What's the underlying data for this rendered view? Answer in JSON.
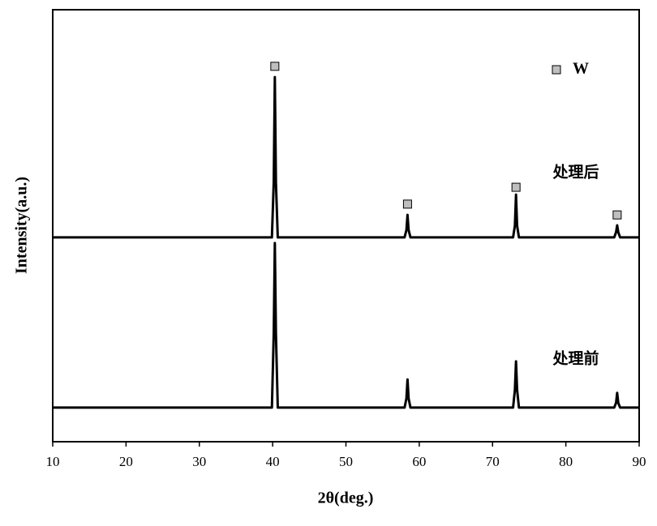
{
  "chart_data": {
    "type": "line",
    "xlabel": "2θ(deg.)",
    "ylabel": "Intensity(a.u.)",
    "xlim": [
      10,
      90
    ],
    "xticks": [
      10,
      20,
      30,
      40,
      50,
      60,
      70,
      80,
      90
    ],
    "ylim": [
      0,
      100
    ],
    "x": [
      10,
      39.9,
      40.15,
      40.3,
      40.45,
      40.7,
      58.0,
      58.25,
      58.4,
      58.55,
      58.8,
      72.8,
      73.05,
      73.2,
      73.35,
      73.6,
      86.6,
      86.85,
      87.0,
      87.15,
      87.4,
      90
    ],
    "series": [
      {
        "name": "处理后",
        "color": "#000000",
        "values": [
          47.3,
          47.3,
          60,
          84.4,
          60,
          47.3,
          47.3,
          49,
          52.5,
          49,
          47.3,
          47.3,
          50,
          57.2,
          50,
          47.3,
          47.3,
          48.5,
          50.1,
          48.5,
          47.3,
          47.3
        ]
      },
      {
        "name": "处理前",
        "color": "#000000",
        "values": [
          7.9,
          7.9,
          25,
          46,
          25,
          7.9,
          7.9,
          10,
          14.4,
          10,
          7.9,
          7.9,
          12,
          18.6,
          12,
          7.9,
          7.9,
          9,
          11.3,
          9,
          7.9,
          7.9
        ]
      }
    ],
    "markers": {
      "name": "W",
      "color": "#bfbfbf",
      "x": [
        40.3,
        58.4,
        73.2,
        87.0
      ],
      "y": [
        86.9,
        55.0,
        58.9,
        52.5
      ]
    }
  }
}
